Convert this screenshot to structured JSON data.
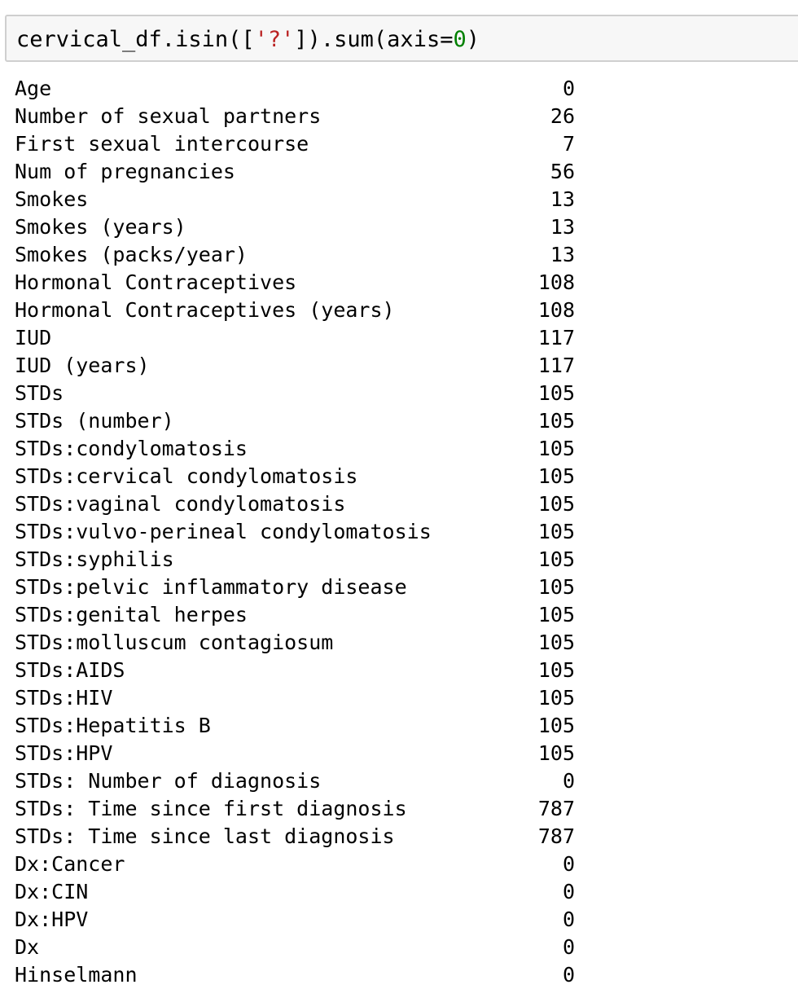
{
  "input_cell": {
    "code_parts": {
      "prefix": "cervical_df.isin([",
      "string_literal": "'?'",
      "middle": "]).sum(axis=",
      "number_literal": "0",
      "suffix": ")"
    },
    "colors": {
      "string": "#ba2121",
      "number": "#008000",
      "background": "#f7f7f7",
      "border": "#cfcfcf"
    }
  },
  "output": {
    "rows": [
      {
        "label": "Age",
        "value": "0"
      },
      {
        "label": "Number of sexual partners",
        "value": "26"
      },
      {
        "label": "First sexual intercourse",
        "value": "7"
      },
      {
        "label": "Num of pregnancies",
        "value": "56"
      },
      {
        "label": "Smokes",
        "value": "13"
      },
      {
        "label": "Smokes (years)",
        "value": "13"
      },
      {
        "label": "Smokes (packs/year)",
        "value": "13"
      },
      {
        "label": "Hormonal Contraceptives",
        "value": "108"
      },
      {
        "label": "Hormonal Contraceptives (years)",
        "value": "108"
      },
      {
        "label": "IUD",
        "value": "117"
      },
      {
        "label": "IUD (years)",
        "value": "117"
      },
      {
        "label": "STDs",
        "value": "105"
      },
      {
        "label": "STDs (number)",
        "value": "105"
      },
      {
        "label": "STDs:condylomatosis",
        "value": "105"
      },
      {
        "label": "STDs:cervical condylomatosis",
        "value": "105"
      },
      {
        "label": "STDs:vaginal condylomatosis",
        "value": "105"
      },
      {
        "label": "STDs:vulvo-perineal condylomatosis",
        "value": "105"
      },
      {
        "label": "STDs:syphilis",
        "value": "105"
      },
      {
        "label": "STDs:pelvic inflammatory disease",
        "value": "105"
      },
      {
        "label": "STDs:genital herpes",
        "value": "105"
      },
      {
        "label": "STDs:molluscum contagiosum",
        "value": "105"
      },
      {
        "label": "STDs:AIDS",
        "value": "105"
      },
      {
        "label": "STDs:HIV",
        "value": "105"
      },
      {
        "label": "STDs:Hepatitis B",
        "value": "105"
      },
      {
        "label": "STDs:HPV",
        "value": "105"
      },
      {
        "label": "STDs: Number of diagnosis",
        "value": "0"
      },
      {
        "label": "STDs: Time since first diagnosis",
        "value": "787"
      },
      {
        "label": "STDs: Time since last diagnosis",
        "value": "787"
      },
      {
        "label": "Dx:Cancer",
        "value": "0"
      },
      {
        "label": "Dx:CIN",
        "value": "0"
      },
      {
        "label": "Dx:HPV",
        "value": "0"
      },
      {
        "label": "Dx",
        "value": "0"
      },
      {
        "label": "Hinselmann",
        "value": "0"
      }
    ]
  }
}
